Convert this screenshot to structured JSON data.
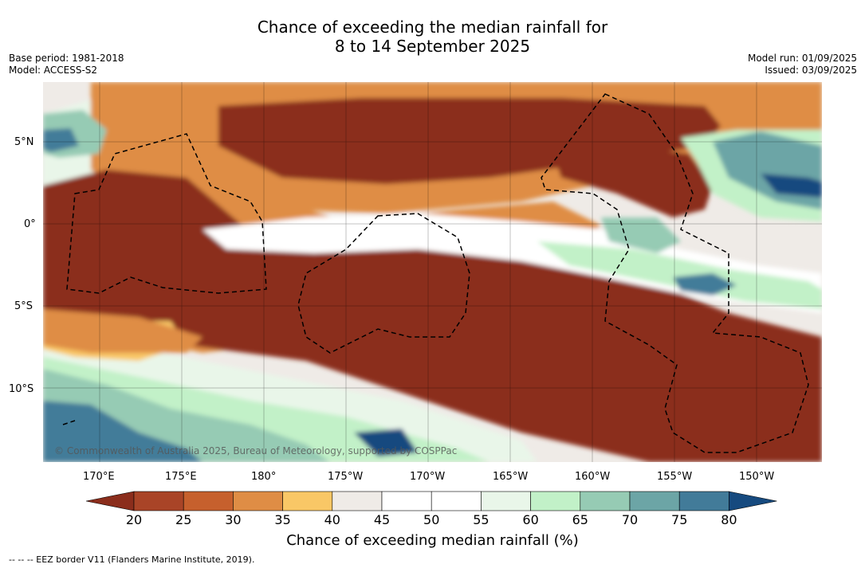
{
  "title_line1": "Chance of exceeding the median rainfall for",
  "title_line2": "8 to 14 September 2025",
  "meta_left": [
    "Base period: 1981-2018",
    "Model: ACCESS-S2"
  ],
  "meta_right": [
    "Model run: 01/09/2025",
    "Issued: 03/09/2025"
  ],
  "latitude_labels": [
    "5°N",
    "0°",
    "5°S",
    "10°S"
  ],
  "longitude_labels": [
    "170°E",
    "175°E",
    "180°",
    "175°W",
    "170°W",
    "165°W",
    "160°W",
    "155°W",
    "150°W"
  ],
  "copyright": "© Commonwealth of Australia 2025, Bureau of Meteorology, supported by COSPPac",
  "colorbar": {
    "ticks": [
      "20",
      "25",
      "30",
      "35",
      "40",
      "45",
      "50",
      "55",
      "60",
      "65",
      "70",
      "75",
      "80"
    ],
    "colors": [
      "#8b2d1c",
      "#a94427",
      "#c6602d",
      "#df8d45",
      "#f9c766",
      "#efebe7",
      "#ffffff",
      "#ffffff",
      "#e9f6e9",
      "#c2f1c8",
      "#96cbb4",
      "#6ca5a6",
      "#427b99",
      "#164a7f"
    ],
    "title": "Chance of exceeding median rainfall (%)"
  },
  "footer": "--  --  -- EEZ border V11 (Flanders Marine Institute, 2019)."
}
